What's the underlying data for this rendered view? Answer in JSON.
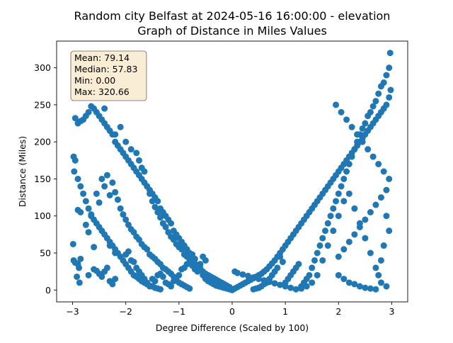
{
  "chart_data": {
    "type": "scatter",
    "title_line1": "Random city Belfast at 2024-05-16 16:00:00  - elevation",
    "title_line2": "Graph of Distance in Miles Values",
    "xlabel": "Degree Difference (Scaled by 100)",
    "ylabel": "Distance (Miles)",
    "xlim": [
      -3.3,
      3.3
    ],
    "ylim": [
      -16,
      336
    ],
    "xticks": [
      -3,
      -2,
      -1,
      0,
      1,
      2,
      3
    ],
    "yticks": [
      0,
      50,
      100,
      150,
      200,
      250,
      300
    ],
    "grid": false,
    "marker_color": "#1f77b4",
    "stats": {
      "mean": "Mean: 79.14",
      "median": "Median: 57.83",
      "min": "Min: 0.00",
      "max": "Max: 320.66"
    },
    "stats_box_color": "#f5deb3",
    "points": [
      [
        -2.98,
        40
      ],
      [
        -2.95,
        37
      ],
      [
        -2.9,
        35
      ],
      [
        -2.85,
        42
      ],
      [
        -2.88,
        30
      ],
      [
        -2.92,
        18
      ],
      [
        -2.87,
        10
      ],
      [
        -2.99,
        62
      ],
      [
        -2.7,
        20
      ],
      [
        -2.6,
        28
      ],
      [
        -2.55,
        26
      ],
      [
        -2.5,
        22
      ],
      [
        -2.45,
        18
      ],
      [
        -2.4,
        25
      ],
      [
        -2.35,
        30
      ],
      [
        -2.3,
        12
      ],
      [
        -2.25,
        8
      ],
      [
        -2.2,
        15
      ],
      [
        -2.6,
        58
      ],
      [
        -2.3,
        60
      ],
      [
        -2.2,
        50
      ],
      [
        -2.0,
        48
      ],
      [
        -1.95,
        52
      ],
      [
        -1.9,
        40
      ],
      [
        -1.85,
        38
      ],
      [
        -1.8,
        30
      ],
      [
        -1.75,
        25
      ],
      [
        -1.7,
        20
      ],
      [
        -1.65,
        15
      ],
      [
        -1.6,
        10
      ],
      [
        -1.55,
        5
      ],
      [
        -1.5,
        15
      ],
      [
        -1.45,
        12
      ],
      [
        -1.4,
        20
      ],
      [
        -1.35,
        22
      ],
      [
        -1.3,
        18
      ],
      [
        -1.25,
        10
      ],
      [
        -1.2,
        8
      ],
      [
        -1.15,
        5
      ],
      [
        -1.1,
        12
      ],
      [
        -1.05,
        15
      ],
      [
        -1.0,
        20
      ],
      [
        -0.95,
        28
      ],
      [
        -0.9,
        30
      ],
      [
        -0.85,
        35
      ],
      [
        -0.8,
        38
      ],
      [
        -0.75,
        33
      ],
      [
        -0.7,
        28
      ],
      [
        -0.65,
        25
      ],
      [
        -0.6,
        30
      ],
      [
        -0.55,
        20
      ],
      [
        -0.5,
        15
      ],
      [
        -0.45,
        12
      ],
      [
        -0.4,
        10
      ],
      [
        -0.35,
        8
      ],
      [
        -0.3,
        6
      ],
      [
        -0.25,
        5
      ],
      [
        -0.2,
        4
      ],
      [
        -0.15,
        3
      ],
      [
        -0.1,
        2
      ],
      [
        -0.05,
        1
      ],
      [
        0.0,
        0
      ],
      [
        -0.5,
        40
      ],
      [
        -0.55,
        45
      ],
      [
        -0.6,
        35
      ],
      [
        -0.65,
        30
      ],
      [
        -0.7,
        42
      ],
      [
        -0.75,
        48
      ],
      [
        -0.8,
        50
      ],
      [
        -0.85,
        55
      ],
      [
        -0.9,
        60
      ],
      [
        -0.95,
        65
      ],
      [
        -1.0,
        70
      ],
      [
        -1.05,
        75
      ],
      [
        -1.1,
        80
      ],
      [
        -1.15,
        90
      ],
      [
        -1.2,
        95
      ],
      [
        -1.25,
        100
      ],
      [
        -1.3,
        105
      ],
      [
        -1.35,
        110
      ],
      [
        -1.4,
        120
      ],
      [
        -1.45,
        125
      ],
      [
        -1.5,
        130
      ],
      [
        -1.55,
        135
      ],
      [
        -1.6,
        140
      ],
      [
        -1.65,
        145
      ],
      [
        -1.7,
        150
      ],
      [
        -1.75,
        155
      ],
      [
        -1.8,
        160
      ],
      [
        -1.85,
        165
      ],
      [
        -1.9,
        170
      ],
      [
        -1.95,
        175
      ],
      [
        -2.0,
        180
      ],
      [
        -2.05,
        185
      ],
      [
        -2.1,
        190
      ],
      [
        -2.15,
        195
      ],
      [
        -2.2,
        200
      ],
      [
        -2.25,
        210
      ],
      [
        -2.3,
        215
      ],
      [
        -2.35,
        220
      ],
      [
        -2.4,
        225
      ],
      [
        -2.45,
        230
      ],
      [
        -2.5,
        235
      ],
      [
        -2.55,
        240
      ],
      [
        -2.6,
        245
      ],
      [
        -2.65,
        248
      ],
      [
        -2.7,
        240
      ],
      [
        -2.75,
        235
      ],
      [
        -2.8,
        230
      ],
      [
        -2.85,
        228
      ],
      [
        -2.9,
        225
      ],
      [
        -2.95,
        232
      ],
      [
        -2.98,
        180
      ],
      [
        -2.97,
        160
      ],
      [
        -2.95,
        175
      ],
      [
        -2.9,
        150
      ],
      [
        -2.85,
        140
      ],
      [
        -2.8,
        130
      ],
      [
        -2.75,
        120
      ],
      [
        -2.7,
        110
      ],
      [
        -2.65,
        100
      ],
      [
        -2.6,
        95
      ],
      [
        -2.55,
        90
      ],
      [
        -2.5,
        85
      ],
      [
        -2.45,
        80
      ],
      [
        -2.4,
        75
      ],
      [
        -2.35,
        70
      ],
      [
        -2.3,
        65
      ],
      [
        -2.25,
        60
      ],
      [
        -2.2,
        55
      ],
      [
        -2.15,
        50
      ],
      [
        -2.1,
        45
      ],
      [
        -2.05,
        40
      ],
      [
        -2.0,
        35
      ],
      [
        -1.95,
        30
      ],
      [
        -1.9,
        25
      ],
      [
        -1.85,
        20
      ],
      [
        -1.8,
        18
      ],
      [
        -1.75,
        15
      ],
      [
        -1.7,
        12
      ],
      [
        -1.65,
        10
      ],
      [
        -1.6,
        8
      ],
      [
        -1.55,
        6
      ],
      [
        -1.5,
        5
      ],
      [
        -1.45,
        3
      ],
      [
        -1.4,
        2
      ],
      [
        -1.35,
        1
      ],
      [
        -2.9,
        108
      ],
      [
        -2.85,
        105
      ],
      [
        -2.75,
        88
      ],
      [
        -2.7,
        78
      ],
      [
        -2.65,
        102
      ],
      [
        -2.55,
        130
      ],
      [
        -2.5,
        118
      ],
      [
        -2.45,
        150
      ],
      [
        -2.4,
        140
      ],
      [
        -2.35,
        155
      ],
      [
        -2.3,
        128
      ],
      [
        -2.25,
        145
      ],
      [
        -2.2,
        132
      ],
      [
        -2.15,
        122
      ],
      [
        -2.1,
        110
      ],
      [
        -2.05,
        102
      ],
      [
        -2.0,
        95
      ],
      [
        -1.95,
        88
      ],
      [
        -1.9,
        82
      ],
      [
        -1.85,
        78
      ],
      [
        -1.8,
        72
      ],
      [
        -1.75,
        68
      ],
      [
        -1.7,
        62
      ],
      [
        -1.65,
        58
      ],
      [
        -1.6,
        55
      ],
      [
        -1.55,
        48
      ],
      [
        -1.5,
        45
      ],
      [
        -1.45,
        42
      ],
      [
        -1.4,
        38
      ],
      [
        -1.35,
        35
      ],
      [
        -1.3,
        30
      ],
      [
        -1.25,
        28
      ],
      [
        -1.2,
        25
      ],
      [
        -1.15,
        22
      ],
      [
        -1.1,
        18
      ],
      [
        -1.05,
        14
      ],
      [
        -1.0,
        10
      ],
      [
        -0.95,
        8
      ],
      [
        -0.9,
        6
      ],
      [
        -0.85,
        4
      ],
      [
        -0.8,
        2
      ],
      [
        -2.4,
        245
      ],
      [
        -2.2,
        210
      ],
      [
        -2.1,
        220
      ],
      [
        -2.0,
        200
      ],
      [
        -1.9,
        190
      ],
      [
        -1.8,
        185
      ],
      [
        -1.75,
        175
      ],
      [
        -1.7,
        165
      ],
      [
        -1.65,
        160
      ],
      [
        -1.6,
        140
      ],
      [
        -1.55,
        130
      ],
      [
        -1.5,
        120
      ],
      [
        -1.45,
        112
      ],
      [
        -1.4,
        105
      ],
      [
        -1.35,
        98
      ],
      [
        -1.3,
        90
      ],
      [
        -1.25,
        85
      ],
      [
        -1.2,
        78
      ],
      [
        -1.15,
        72
      ],
      [
        -1.1,
        68
      ],
      [
        -1.05,
        62
      ],
      [
        -1.0,
        58
      ],
      [
        -0.95,
        55
      ],
      [
        -0.9,
        48
      ],
      [
        -0.85,
        45
      ],
      [
        -0.8,
        42
      ],
      [
        -0.75,
        40
      ],
      [
        -0.7,
        36
      ],
      [
        -0.65,
        32
      ],
      [
        -0.6,
        28
      ],
      [
        -0.55,
        25
      ],
      [
        -0.5,
        22
      ],
      [
        -0.45,
        20
      ],
      [
        -0.4,
        18
      ],
      [
        -0.35,
        16
      ],
      [
        -0.3,
        14
      ],
      [
        -0.25,
        12
      ],
      [
        -0.2,
        10
      ],
      [
        -0.15,
        8
      ],
      [
        -0.1,
        6
      ],
      [
        -0.05,
        4
      ],
      [
        0.05,
        2
      ],
      [
        0.1,
        4
      ],
      [
        0.15,
        6
      ],
      [
        0.2,
        8
      ],
      [
        0.25,
        10
      ],
      [
        0.3,
        12
      ],
      [
        0.35,
        14
      ],
      [
        0.4,
        16
      ],
      [
        0.45,
        18
      ],
      [
        0.5,
        20
      ],
      [
        0.55,
        22
      ],
      [
        0.6,
        25
      ],
      [
        0.65,
        28
      ],
      [
        0.7,
        32
      ],
      [
        0.75,
        36
      ],
      [
        0.8,
        40
      ],
      [
        0.85,
        45
      ],
      [
        0.9,
        50
      ],
      [
        0.95,
        55
      ],
      [
        1.0,
        60
      ],
      [
        1.05,
        65
      ],
      [
        1.1,
        70
      ],
      [
        1.15,
        75
      ],
      [
        1.2,
        80
      ],
      [
        1.25,
        85
      ],
      [
        1.3,
        90
      ],
      [
        1.35,
        95
      ],
      [
        1.4,
        100
      ],
      [
        1.45,
        105
      ],
      [
        1.5,
        110
      ],
      [
        1.55,
        115
      ],
      [
        1.6,
        120
      ],
      [
        1.65,
        125
      ],
      [
        1.7,
        130
      ],
      [
        1.75,
        135
      ],
      [
        1.8,
        140
      ],
      [
        1.85,
        145
      ],
      [
        1.9,
        150
      ],
      [
        1.95,
        155
      ],
      [
        2.0,
        160
      ],
      [
        2.05,
        165
      ],
      [
        2.1,
        170
      ],
      [
        2.15,
        175
      ],
      [
        2.2,
        180
      ],
      [
        2.25,
        185
      ],
      [
        2.3,
        190
      ],
      [
        2.35,
        195
      ],
      [
        2.4,
        200
      ],
      [
        2.45,
        205
      ],
      [
        2.5,
        210
      ],
      [
        2.55,
        215
      ],
      [
        2.6,
        220
      ],
      [
        2.65,
        225
      ],
      [
        2.7,
        230
      ],
      [
        2.75,
        235
      ],
      [
        2.8,
        240
      ],
      [
        2.85,
        245
      ],
      [
        2.9,
        250
      ],
      [
        2.95,
        260
      ],
      [
        2.98,
        270
      ],
      [
        2.95,
        300
      ],
      [
        2.97,
        320
      ],
      [
        2.9,
        290
      ],
      [
        2.85,
        280
      ],
      [
        2.8,
        275
      ],
      [
        2.75,
        265
      ],
      [
        2.7,
        255
      ],
      [
        2.65,
        248
      ],
      [
        2.6,
        240
      ],
      [
        2.55,
        235
      ],
      [
        2.5,
        225
      ],
      [
        2.45,
        218
      ],
      [
        2.4,
        210
      ],
      [
        2.35,
        200
      ],
      [
        2.3,
        190
      ],
      [
        2.25,
        180
      ],
      [
        2.2,
        170
      ],
      [
        2.15,
        160
      ],
      [
        2.1,
        150
      ],
      [
        2.05,
        140
      ],
      [
        2.0,
        130
      ],
      [
        1.95,
        120
      ],
      [
        1.9,
        110
      ],
      [
        1.85,
        100
      ],
      [
        1.8,
        90
      ],
      [
        1.75,
        80
      ],
      [
        1.7,
        70
      ],
      [
        1.65,
        60
      ],
      [
        1.6,
        50
      ],
      [
        1.55,
        40
      ],
      [
        1.5,
        30
      ],
      [
        1.45,
        20
      ],
      [
        1.4,
        15
      ],
      [
        1.35,
        10
      ],
      [
        1.3,
        5
      ],
      [
        1.0,
        10
      ],
      [
        1.05,
        15
      ],
      [
        1.1,
        20
      ],
      [
        1.15,
        25
      ],
      [
        1.2,
        30
      ],
      [
        1.25,
        35
      ],
      [
        0.9,
        45
      ],
      [
        0.95,
        38
      ],
      [
        0.85,
        30
      ],
      [
        0.8,
        25
      ],
      [
        0.75,
        20
      ],
      [
        0.7,
        15
      ],
      [
        0.65,
        10
      ],
      [
        0.6,
        8
      ],
      [
        0.55,
        5
      ],
      [
        0.5,
        3
      ],
      [
        0.45,
        2
      ],
      [
        0.4,
        1
      ],
      [
        2.0,
        20
      ],
      [
        2.1,
        15
      ],
      [
        2.2,
        10
      ],
      [
        2.3,
        8
      ],
      [
        2.4,
        5
      ],
      [
        2.5,
        3
      ],
      [
        2.6,
        2
      ],
      [
        2.7,
        1
      ],
      [
        2.8,
        10
      ],
      [
        2.9,
        5
      ],
      [
        2.0,
        45
      ],
      [
        2.1,
        55
      ],
      [
        2.2,
        65
      ],
      [
        2.3,
        75
      ],
      [
        2.4,
        85
      ],
      [
        2.5,
        95
      ],
      [
        2.6,
        105
      ],
      [
        2.7,
        115
      ],
      [
        2.8,
        125
      ],
      [
        2.9,
        135
      ],
      [
        2.95,
        150
      ],
      [
        2.85,
        160
      ],
      [
        2.75,
        170
      ],
      [
        2.65,
        180
      ],
      [
        2.55,
        190
      ],
      [
        2.45,
        200
      ],
      [
        2.35,
        210
      ],
      [
        2.25,
        220
      ],
      [
        2.15,
        230
      ],
      [
        2.05,
        240
      ],
      [
        1.95,
        250
      ],
      [
        2.9,
        100
      ],
      [
        2.95,
        80
      ],
      [
        2.85,
        60
      ],
      [
        2.8,
        40
      ],
      [
        2.75,
        20
      ],
      [
        2.7,
        30
      ],
      [
        2.6,
        50
      ],
      [
        2.5,
        70
      ],
      [
        2.4,
        90
      ],
      [
        2.3,
        110
      ],
      [
        2.2,
        130
      ],
      [
        2.1,
        120
      ],
      [
        2.0,
        100
      ],
      [
        1.9,
        80
      ],
      [
        1.8,
        60
      ],
      [
        1.7,
        40
      ],
      [
        1.6,
        20
      ],
      [
        1.5,
        10
      ],
      [
        1.4,
        5
      ],
      [
        1.3,
        2
      ],
      [
        1.2,
        1
      ],
      [
        1.1,
        3
      ],
      [
        1.0,
        5
      ],
      [
        0.9,
        7
      ],
      [
        0.8,
        9
      ],
      [
        0.7,
        11
      ],
      [
        0.6,
        13
      ],
      [
        0.5,
        15
      ],
      [
        0.4,
        17
      ],
      [
        0.3,
        19
      ],
      [
        0.2,
        21
      ],
      [
        0.1,
        23
      ],
      [
        0.05,
        25
      ]
    ]
  }
}
